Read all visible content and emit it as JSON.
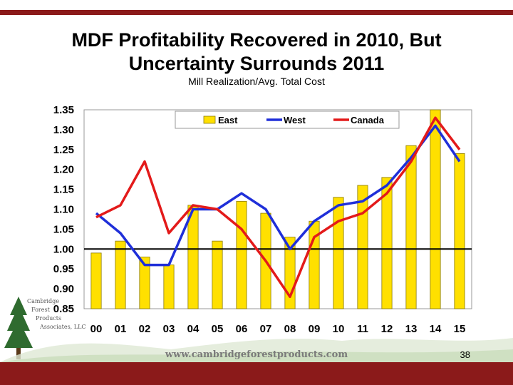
{
  "slide": {
    "title_line1": "MDF Profitability Recovered in 2010, But",
    "title_line2": "Uncertainty Surrounds 2011",
    "subtitle": "Mill Realization/Avg. Total Cost",
    "page_number": "38",
    "website": "www.cambridgeforestproducts.com",
    "logo_lines": [
      "Cambridge",
      "Forest",
      "Products",
      "Associates, LLC"
    ]
  },
  "colors": {
    "accent_bar": "#8b1a1a",
    "east": "#ffe000",
    "west": "#1f2fd9",
    "canada": "#e31a1a"
  },
  "chart_data": {
    "type": "bar",
    "title": "MDF Profitability Recovered in 2010, But Uncertainty Surrounds 2011",
    "subtitle": "Mill Realization/Avg. Total Cost",
    "categories": [
      "00",
      "01",
      "02",
      "03",
      "04",
      "05",
      "06",
      "07",
      "08",
      "09",
      "10",
      "11",
      "12",
      "13",
      "14",
      "15"
    ],
    "ylim": [
      0.85,
      1.35
    ],
    "yticks": [
      "1.35",
      "1.30",
      "1.25",
      "1.20",
      "1.15",
      "1.10",
      "1.05",
      "1.00",
      "0.95",
      "0.90",
      "0.85"
    ],
    "reference_line": 1.0,
    "grid": false,
    "legend_position": "top-right",
    "series": [
      {
        "name": "East",
        "kind": "bar",
        "values": [
          0.99,
          1.02,
          0.98,
          0.96,
          1.11,
          1.02,
          1.12,
          1.09,
          1.03,
          1.07,
          1.13,
          1.16,
          1.18,
          1.26,
          1.35,
          1.24
        ]
      },
      {
        "name": "West",
        "kind": "line",
        "values": [
          1.09,
          1.04,
          0.96,
          0.96,
          1.1,
          1.1,
          1.14,
          1.1,
          1.0,
          1.07,
          1.11,
          1.12,
          1.16,
          1.23,
          1.31,
          1.22
        ]
      },
      {
        "name": "Canada",
        "kind": "line",
        "values": [
          1.08,
          1.11,
          1.22,
          1.04,
          1.11,
          1.1,
          1.05,
          0.97,
          0.88,
          1.03,
          1.07,
          1.09,
          1.14,
          1.22,
          1.33,
          1.25
        ]
      }
    ]
  }
}
